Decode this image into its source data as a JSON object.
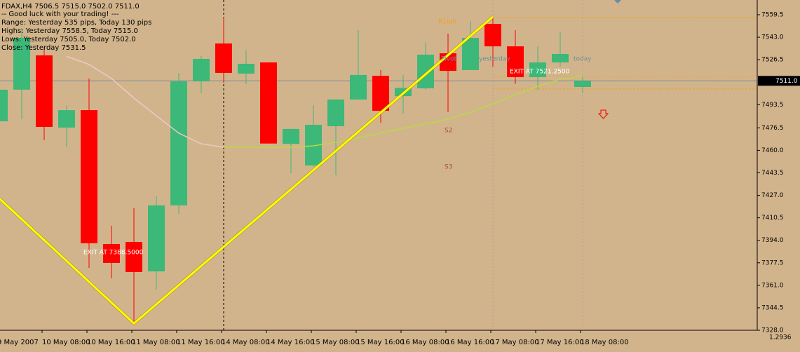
{
  "chart_data": {
    "type": "candlestick",
    "info_lines": [
      "FDAX,H4  7506.5 7515.0 7502.0 7511.0",
      "-- Good luck with your trading! ---",
      "Range: Yesterday 535 pips, Today 130 pips",
      "Highs: Yesterday 7558.5, Today 7515.0",
      "Lows: Yesterday 7505.0, Today 7502.0",
      "Close: Yesterday 7531.5"
    ],
    "categories": [
      "9 May 2007",
      null,
      "10 May 08:00",
      null,
      "10 May 16:00",
      null,
      "11 May 08:00",
      null,
      "11 May 16:00",
      null,
      "14 May 08:00",
      null,
      "14 May 16:00",
      null,
      "15 May 08:00",
      null,
      "15 May 16:00",
      null,
      "16 May 08:00",
      null,
      "16 May 16:00",
      null,
      "17 May 08:00",
      null,
      "17 May 16:00",
      null,
      "18 May 08:00"
    ],
    "open": [
      7481.3,
      7504.5,
      7529.7,
      7476.7,
      7489.5,
      7391.3,
      7392.8,
      7371.2,
      7419.6,
      7510.6,
      7538.4,
      7516.3,
      7524.5,
      7464.8,
      7448.9,
      7477.7,
      7497.3,
      7514.7,
      7499.8,
      7505.5,
      7531.2,
      7518.9,
      7552.8,
      7536.3,
      7513.7,
      7524.5,
      7506.5
    ],
    "high": [
      7510.0,
      7549.7,
      7535.3,
      7493.1,
      7512.7,
      7404.7,
      7417.5,
      7426.3,
      7516.8,
      7529.2,
      7557.4,
      7533.3,
      7524.5,
      7475.7,
      7493.1,
      7497.3,
      7548.2,
      7518.9,
      7515.3,
      7539.4,
      7545.6,
      7554.9,
      7558.0,
      7548.2,
      7536.3,
      7546.6,
      7515.0
    ],
    "low": [
      7478.0,
      7482.8,
      7467.4,
      7462.3,
      7373.8,
      7366.1,
      7332.6,
      7357.9,
      7413.4,
      7501.9,
      7509.6,
      7508.6,
      7465.0,
      7443.2,
      7447.9,
      7441.7,
      7497.3,
      7480.3,
      7487.0,
      7504.5,
      7488.0,
      7518.9,
      7521.4,
      7508.6,
      7504.5,
      7521.4,
      7502.0
    ],
    "close": [
      7504.5,
      7542.5,
      7477.2,
      7489.5,
      7391.8,
      7377.4,
      7370.7,
      7419.6,
      7510.6,
      7527.1,
      7516.8,
      7523.5,
      7465.0,
      7475.7,
      7478.7,
      7497.3,
      7515.3,
      7489.0,
      7505.8,
      7530.2,
      7518.3,
      7542.5,
      7536.3,
      7513.7,
      7524.5,
      7530.7,
      7511.0
    ],
    "up_color": "#3cb878",
    "down_color": "#ff0000",
    "ylim": [
      7328.0,
      7570.3
    ],
    "yticks": [
      7559.5,
      {
        "value": 7543.0,
        "label": "7543.0"
      },
      7526.5,
      7493.5,
      7476.5,
      {
        "value": 7460.0,
        "label": "7460.0"
      },
      7443.5,
      {
        "value": 7427.0,
        "label": "7427.0"
      },
      7410.5,
      {
        "value": 7394.0,
        "label": "7394.0"
      },
      7377.5,
      {
        "value": 7361.0,
        "label": "7361.0"
      },
      7344.5,
      {
        "value": 7328.0,
        "label": "7328.0"
      }
    ],
    "current_price": {
      "value": 7511.0,
      "label": "7511.0"
    },
    "lines": [
      {
        "color": "#f0c8c8",
        "x": [
          3,
          4,
          5,
          6,
          7,
          8,
          9,
          10
        ],
        "values": [
          7529.0,
          7523.0,
          7512.7,
          7498.3,
          7485.4,
          7472.6,
          7464.8,
          7462.3
        ]
      },
      {
        "color": "#b8d848",
        "x": [
          10,
          11,
          12,
          13,
          14,
          15,
          16,
          17,
          18,
          19,
          20,
          21,
          22,
          23,
          24,
          25,
          26
        ],
        "values": [
          7462.3,
          7462.3,
          7462.3,
          7462.3,
          7463.3,
          7465.9,
          7469.0,
          7472.6,
          7476.2,
          7479.3,
          7482.9,
          7488.0,
          7494.2,
          7500.9,
          7507.0,
          7512.2,
          7514.7
        ]
      },
      {
        "color": "#ffff00",
        "x": [
          0,
          6,
          22
        ],
        "values": [
          7424.7,
          7333.0,
          7558.0
        ],
        "width": 3
      }
    ],
    "levels": [
      {
        "value": 7557.5,
        "color": "#f0a020",
        "from": 22
      },
      {
        "value": 7514.5,
        "color": "#f0a020",
        "from": 22
      },
      {
        "value": 7505.0,
        "color": "#f0a020",
        "from": 22
      }
    ],
    "annotations": [
      "EXIT AT 7388.5000",
      "EXIT AT 7521.2500",
      "R1igh",
      "Pivot",
      "yesterday",
      "today",
      "S2",
      "S3"
    ],
    "indicator_label": "1.2936"
  }
}
